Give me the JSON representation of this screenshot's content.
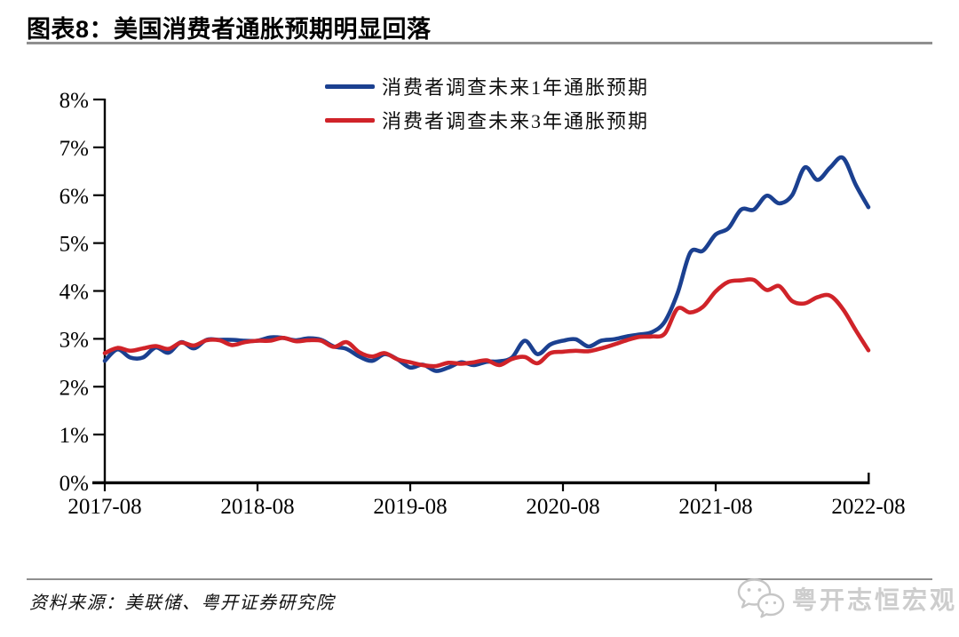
{
  "page": {
    "title": "图表8：美国消费者通胀预期明显回落"
  },
  "source": {
    "label": "资料来源：美联储、粤开证券研究院"
  },
  "watermark": {
    "icon": "wechat-icon",
    "label": "粤开志恒宏观"
  },
  "colors": {
    "series_1y": "#1b4090",
    "series_3y": "#d02329",
    "axis": "#000000",
    "rule": "#8f8f8f",
    "watermark": "#c8c8c8"
  },
  "chart_data": {
    "type": "line",
    "title": "",
    "xlabel": "",
    "ylabel": "",
    "ylim": [
      0,
      8
    ],
    "grid": false,
    "legend_position": "top-center",
    "yticks": [
      "0%",
      "1%",
      "2%",
      "3%",
      "4%",
      "5%",
      "6%",
      "7%",
      "8%"
    ],
    "xticks": [
      "2017-08",
      "2018-08",
      "2019-08",
      "2020-08",
      "2021-08",
      "2022-08"
    ],
    "x": [
      "2017-08",
      "2017-09",
      "2017-10",
      "2017-11",
      "2017-12",
      "2018-01",
      "2018-02",
      "2018-03",
      "2018-04",
      "2018-05",
      "2018-06",
      "2018-07",
      "2018-08",
      "2018-09",
      "2018-10",
      "2018-11",
      "2018-12",
      "2019-01",
      "2019-02",
      "2019-03",
      "2019-04",
      "2019-05",
      "2019-06",
      "2019-07",
      "2019-08",
      "2019-09",
      "2019-10",
      "2019-11",
      "2019-12",
      "2020-01",
      "2020-02",
      "2020-03",
      "2020-04",
      "2020-05",
      "2020-06",
      "2020-07",
      "2020-08",
      "2020-09",
      "2020-10",
      "2020-11",
      "2020-12",
      "2021-01",
      "2021-02",
      "2021-03",
      "2021-04",
      "2021-05",
      "2021-06",
      "2021-07",
      "2021-08",
      "2021-09",
      "2021-10",
      "2021-11",
      "2021-12",
      "2022-01",
      "2022-02",
      "2022-03",
      "2022-04",
      "2022-05",
      "2022-06",
      "2022-07",
      "2022-08"
    ],
    "series": [
      {
        "name": "消费者调查未来1年通胀预期",
        "color": "#1b4090",
        "values": [
          2.54,
          2.78,
          2.61,
          2.61,
          2.82,
          2.71,
          2.93,
          2.8,
          2.98,
          2.98,
          2.98,
          2.96,
          2.96,
          3.03,
          3.02,
          2.97,
          3.01,
          2.98,
          2.84,
          2.79,
          2.63,
          2.54,
          2.68,
          2.57,
          2.4,
          2.46,
          2.33,
          2.4,
          2.51,
          2.45,
          2.52,
          2.53,
          2.61,
          2.96,
          2.68,
          2.88,
          2.96,
          2.99,
          2.84,
          2.96,
          2.99,
          3.05,
          3.09,
          3.14,
          3.36,
          3.95,
          4.8,
          4.84,
          5.18,
          5.31,
          5.7,
          5.7,
          5.99,
          5.83,
          6.0,
          6.58,
          6.32,
          6.58,
          6.78,
          6.22,
          5.75
        ]
      },
      {
        "name": "消费者调查未来3年通胀预期",
        "color": "#d02329",
        "values": [
          2.7,
          2.81,
          2.75,
          2.8,
          2.85,
          2.79,
          2.92,
          2.86,
          2.97,
          2.97,
          2.87,
          2.93,
          2.96,
          2.96,
          3.02,
          2.95,
          2.97,
          2.96,
          2.83,
          2.93,
          2.72,
          2.63,
          2.7,
          2.57,
          2.51,
          2.45,
          2.43,
          2.5,
          2.48,
          2.51,
          2.55,
          2.45,
          2.58,
          2.62,
          2.49,
          2.7,
          2.73,
          2.75,
          2.74,
          2.8,
          2.88,
          2.97,
          3.04,
          3.05,
          3.11,
          3.63,
          3.55,
          3.67,
          3.99,
          4.19,
          4.22,
          4.23,
          4.02,
          4.1,
          3.79,
          3.74,
          3.87,
          3.9,
          3.62,
          3.18,
          2.76
        ]
      }
    ]
  }
}
